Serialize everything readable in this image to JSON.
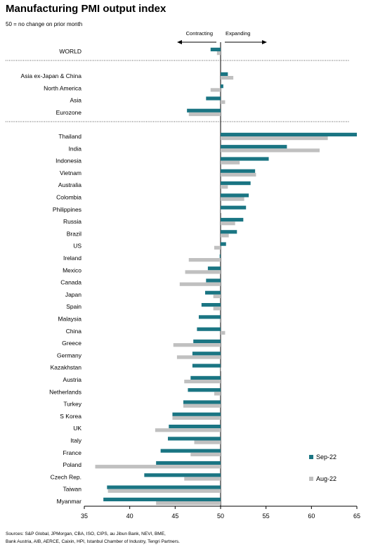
{
  "chart_data": {
    "type": "bar",
    "orientation": "horizontal",
    "title": "Manufacturing PMI output index",
    "subtitle": "50 = no change on prior month",
    "xlim": [
      35,
      65
    ],
    "xticks": [
      35,
      40,
      45,
      50,
      55,
      60,
      65
    ],
    "baseline": 50,
    "annotation_left": "Contracting",
    "annotation_right": "Expanding",
    "legend_position": "bottom-right",
    "series": [
      {
        "name": "Sep-22",
        "color": "#1a7583"
      },
      {
        "name": "Aug-22",
        "color": "#c0c0c0"
      }
    ],
    "groups": [
      {
        "rows": [
          {
            "label": "WORLD",
            "values": [
              48.9,
              49.6
            ]
          }
        ]
      },
      {
        "rows": [
          {
            "label": "Asia ex-Japan & China",
            "values": [
              50.8,
              51.4
            ]
          },
          {
            "label": "North America",
            "values": [
              50.3,
              48.9
            ]
          },
          {
            "label": "Asia",
            "values": [
              48.4,
              50.5
            ]
          },
          {
            "label": "Eurozone",
            "values": [
              46.3,
              46.5
            ]
          }
        ]
      },
      {
        "rows": [
          {
            "label": "Thailand",
            "values": [
              65.0,
              61.8
            ]
          },
          {
            "label": "India",
            "values": [
              57.3,
              60.9
            ]
          },
          {
            "label": "Indonesia",
            "values": [
              55.3,
              52.1
            ]
          },
          {
            "label": "Vietnam",
            "values": [
              53.8,
              53.9
            ]
          },
          {
            "label": "Australia",
            "values": [
              53.3,
              50.8
            ]
          },
          {
            "label": "Colombia",
            "values": [
              53.1,
              52.6
            ]
          },
          {
            "label": "Philippines",
            "values": [
              52.8,
              50.0
            ]
          },
          {
            "label": "Russia",
            "values": [
              52.5,
              51.6
            ]
          },
          {
            "label": "Brazil",
            "values": [
              51.8,
              50.9
            ]
          },
          {
            "label": "US",
            "values": [
              50.6,
              49.3
            ]
          },
          {
            "label": "Ireland",
            "values": [
              49.9,
              46.5
            ]
          },
          {
            "label": "Mexico",
            "values": [
              48.6,
              46.1
            ]
          },
          {
            "label": "Canada",
            "values": [
              48.4,
              45.5
            ]
          },
          {
            "label": "Japan",
            "values": [
              48.3,
              49.2
            ]
          },
          {
            "label": "Spain",
            "values": [
              47.9,
              49.2
            ]
          },
          {
            "label": "Malaysia",
            "values": [
              47.6,
              49.9
            ]
          },
          {
            "label": "China",
            "values": [
              47.4,
              50.5
            ]
          },
          {
            "label": "Greece",
            "values": [
              47.0,
              44.8
            ]
          },
          {
            "label": "Germany",
            "values": [
              46.9,
              45.2
            ]
          },
          {
            "label": "Kazakhstan",
            "values": [
              46.9,
              50.0
            ]
          },
          {
            "label": "Austria",
            "values": [
              46.7,
              46.0
            ]
          },
          {
            "label": "Netherlands",
            "values": [
              46.4,
              49.3
            ]
          },
          {
            "label": "Turkey",
            "values": [
              45.9,
              45.9
            ]
          },
          {
            "label": "S Korea",
            "values": [
              44.7,
              44.7
            ]
          },
          {
            "label": "UK",
            "values": [
              44.3,
              42.8
            ]
          },
          {
            "label": "Italy",
            "values": [
              44.2,
              47.1
            ]
          },
          {
            "label": "France",
            "values": [
              43.4,
              46.7
            ]
          },
          {
            "label": "Poland",
            "values": [
              42.9,
              36.2
            ]
          },
          {
            "label": "Czech Rep.",
            "values": [
              41.6,
              46.0
            ]
          },
          {
            "label": "Taiwan",
            "values": [
              37.5,
              37.6
            ]
          },
          {
            "label": "Myanmar",
            "values": [
              37.1,
              42.9
            ]
          }
        ]
      }
    ]
  },
  "sources": {
    "line1": "Sources: S&P Global, JPMorgan, CBA, ISO, CIPS, au Jibun Bank, NEVI, BME,",
    "line2": "Bank Austria, AIB, AERCE, Caixin, HPI, Istanbul Chamber of Industry, Tengri Partners."
  }
}
